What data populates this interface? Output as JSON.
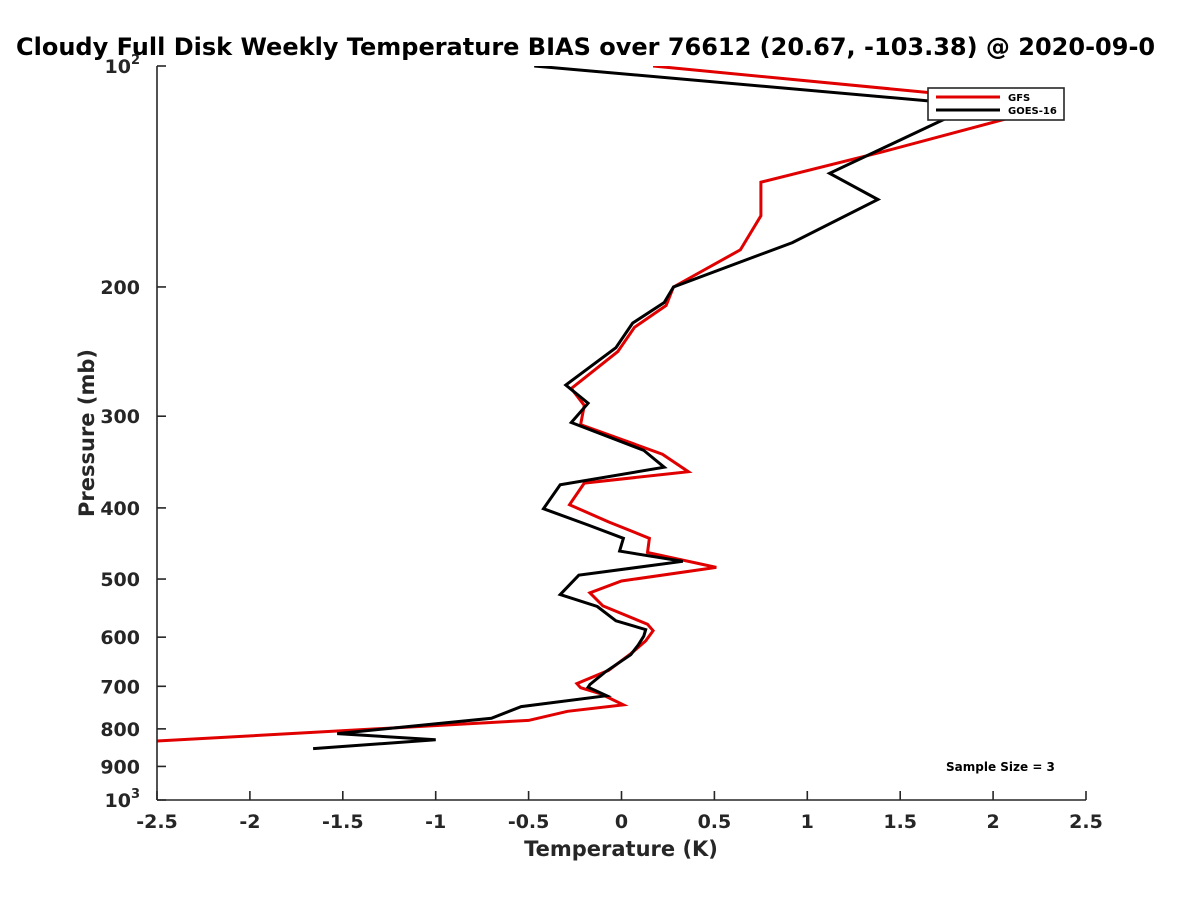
{
  "chart_data": {
    "type": "line",
    "title": "Cloudy Full Disk Weekly Temperature BIAS over 76612 (20.67, -103.38) @ 2020-09-0",
    "xlabel": "Temperature (K)",
    "ylabel": "Pressure (mb)",
    "xlim": [
      -2.5,
      2.5
    ],
    "ylim": [
      100,
      1000
    ],
    "yscale": "log",
    "y_reversed": true,
    "x_ticks": [
      "-2.5",
      "-2",
      "-1.5",
      "-1",
      "-0.5",
      "0",
      "0.5",
      "1",
      "1.5",
      "2",
      "2.5"
    ],
    "x_tick_values": [
      -2.5,
      -2,
      -1.5,
      -1,
      -0.5,
      0,
      0.5,
      1,
      1.5,
      2,
      2.5
    ],
    "y_ticks": [
      {
        "value": 100,
        "base": "10",
        "exp": "2"
      },
      {
        "value": 200,
        "label": "200"
      },
      {
        "value": 300,
        "label": "300"
      },
      {
        "value": 400,
        "label": "400"
      },
      {
        "value": 500,
        "label": "500"
      },
      {
        "value": 600,
        "label": "600"
      },
      {
        "value": 700,
        "label": "700"
      },
      {
        "value": 800,
        "label": "800"
      },
      {
        "value": 900,
        "label": "900"
      },
      {
        "value": 1000,
        "base": "10",
        "exp": "3"
      }
    ],
    "grid": false,
    "legend_position": "top-right",
    "series": [
      {
        "name": "GFS",
        "color": "#e00000",
        "x": [
          0.17,
          2.35,
          1.4,
          0.75,
          0.75,
          0.64,
          0.28,
          0.24,
          0.07,
          -0.02,
          -0.27,
          -0.2,
          -0.22,
          0.22,
          0.36,
          -0.2,
          -0.28,
          -0.07,
          0.15,
          0.14,
          0.51,
          0.0,
          -0.17,
          -0.1,
          0.14,
          0.17,
          0.13,
          0.05,
          -0.07,
          -0.24,
          -0.22,
          -0.11,
          0.01,
          -0.29,
          -0.5,
          -2.5
        ],
        "y": [
          100,
          113,
          131,
          144,
          160,
          178,
          200,
          212,
          227,
          245,
          275,
          290,
          308,
          338,
          357,
          370,
          396,
          418,
          440,
          460,
          482,
          503,
          522,
          544,
          576,
          588,
          607,
          632,
          666,
          694,
          703,
          717,
          742,
          757,
          779,
          831
        ]
      },
      {
        "name": "GOES-16",
        "color": "#000000",
        "x": [
          -0.47,
          1.9,
          1.12,
          1.38,
          0.92,
          0.28,
          0.23,
          0.06,
          -0.03,
          -0.3,
          -0.18,
          -0.27,
          0.12,
          0.23,
          -0.33,
          -0.42,
          -0.18,
          0.01,
          -0.01,
          0.33,
          -0.23,
          -0.33,
          -0.13,
          -0.03,
          0.13,
          0.12,
          0.09,
          0.05,
          -0.09,
          -0.17,
          -0.18,
          -0.08,
          -0.54,
          -0.7,
          -1.53,
          -1.0,
          -1.66
        ],
        "y": [
          100,
          113,
          140,
          152,
          174,
          200,
          210,
          224,
          242,
          272,
          288,
          306,
          334,
          352,
          372,
          401,
          422,
          440,
          458,
          473,
          494,
          525,
          545,
          570,
          586,
          598,
          615,
          634,
          670,
          696,
          702,
          721,
          746,
          774,
          812,
          828,
          851
        ]
      }
    ],
    "annotation": "Sample Size = 3"
  }
}
